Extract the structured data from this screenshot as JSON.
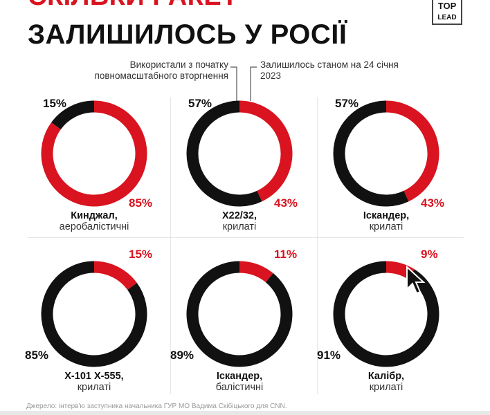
{
  "header": {
    "title_line1": "СКІЛЬКИ РАКЕТ",
    "title_line2": "ЗАЛИШИЛОСЬ У РОСІЇ",
    "logo_top": "TOP",
    "logo_bottom": "LEAD"
  },
  "legend": {
    "used_label": "Використали з початку повномасштабного вторгнення",
    "remaining_label": "Залишилось станом на 24 січня 2023"
  },
  "colors": {
    "used": "#111111",
    "remaining": "#d9131f",
    "grid": "#e6e6e6"
  },
  "chart_data": {
    "type": "pie",
    "variant": "donut",
    "title": "СКІЛЬКИ РАКЕТ ЗАЛИШИЛОСЬ У РОСІЇ",
    "series": [
      {
        "name": "Використали з початку повномасштабного вторгнення",
        "color": "#111111"
      },
      {
        "name": "Залишилось станом на 24 січня 2023",
        "color": "#d9131f"
      }
    ],
    "charts": [
      {
        "name": "Кинджал,",
        "sub": "аеробалістичні",
        "used": 15,
        "remaining": 85,
        "used_label": "15%",
        "remaining_label": "85%"
      },
      {
        "name": "Х22/32,",
        "sub": "крилаті",
        "used": 57,
        "remaining": 43,
        "used_label": "57%",
        "remaining_label": "43%"
      },
      {
        "name": "Іскандер,",
        "sub": "крилаті",
        "used": 57,
        "remaining": 43,
        "used_label": "57%",
        "remaining_label": "43%"
      },
      {
        "name": "Х-101 Х-555,",
        "sub": "крилаті",
        "used": 85,
        "remaining": 15,
        "used_label": "85%",
        "remaining_label": "15%"
      },
      {
        "name": "Іскандер,",
        "sub": "балістичні",
        "used": 89,
        "remaining": 11,
        "used_label": "89%",
        "remaining_label": "11%"
      },
      {
        "name": "Калібр,",
        "sub": "крилаті",
        "used": 91,
        "remaining": 9,
        "used_label": "91%",
        "remaining_label": "9%"
      }
    ]
  },
  "footer": {
    "source": "Джерело: інтерв'ю заступника начальника ГУР МО Вадима Скібіцького для CNN."
  }
}
